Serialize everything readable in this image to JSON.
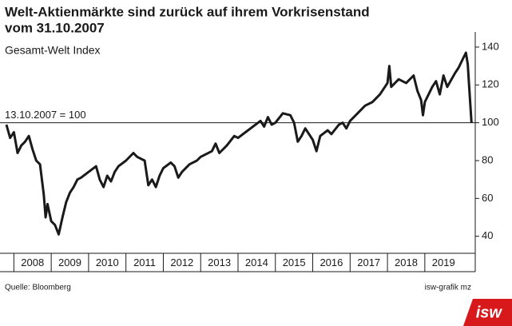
{
  "chart_data": {
    "type": "line",
    "title": [
      "Welt-Aktienmärkte sind zurück auf ihrem  Vorkrisenstand",
      "vom 31.10.2007"
    ],
    "subtitle": "Gesamt-Welt Index",
    "reference_line": {
      "value": 100,
      "label": "13.10.2007 = 100"
    },
    "source": "Quelle: Bloomberg",
    "credit": "isw-grafik mz",
    "logo": "isw",
    "color": "#1a1a1a",
    "x": [
      2007.8,
      2007.9,
      2008.0,
      2008.1,
      2008.2,
      2008.3,
      2008.4,
      2008.5,
      2008.6,
      2008.7,
      2008.8,
      2008.85,
      2008.9,
      2009.0,
      2009.1,
      2009.2,
      2009.3,
      2009.4,
      2009.5,
      2009.6,
      2009.7,
      2009.8,
      2010.0,
      2010.2,
      2010.3,
      2010.4,
      2010.5,
      2010.6,
      2010.7,
      2010.8,
      2011.0,
      2011.2,
      2011.3,
      2011.5,
      2011.6,
      2011.7,
      2011.8,
      2011.9,
      2012.0,
      2012.2,
      2012.3,
      2012.4,
      2012.5,
      2012.7,
      2012.9,
      2013.0,
      2013.3,
      2013.4,
      2013.5,
      2013.7,
      2013.9,
      2014.0,
      2014.2,
      2014.4,
      2014.6,
      2014.7,
      2014.8,
      2014.9,
      2015.0,
      2015.2,
      2015.4,
      2015.5,
      2015.6,
      2015.7,
      2015.8,
      2016.0,
      2016.1,
      2016.2,
      2016.4,
      2016.5,
      2016.7,
      2016.8,
      2016.9,
      2017.0,
      2017.2,
      2017.4,
      2017.6,
      2017.8,
      2018.0,
      2018.05,
      2018.1,
      2018.3,
      2018.5,
      2018.7,
      2018.8,
      2018.9,
      2018.95,
      2019.0,
      2019.2,
      2019.3,
      2019.4,
      2019.5,
      2019.6,
      2019.8,
      2019.9,
      2020.0,
      2020.1,
      2020.15,
      2020.2,
      2020.25
    ],
    "values": [
      99,
      92,
      95,
      84,
      88,
      90,
      93,
      86,
      80,
      78,
      62,
      50,
      57,
      48,
      46,
      41,
      50,
      58,
      63,
      66,
      70,
      71,
      74,
      77,
      70,
      66,
      72,
      69,
      74,
      77,
      80,
      84,
      82,
      80,
      67,
      70,
      66,
      72,
      76,
      79,
      77,
      71,
      74,
      78,
      80,
      82,
      85,
      89,
      84,
      88,
      93,
      92,
      95,
      98,
      101,
      98,
      103,
      99,
      100,
      105,
      104,
      100,
      90,
      93,
      97,
      91,
      85,
      93,
      96,
      94,
      99,
      100,
      97,
      101,
      105,
      109,
      111,
      115,
      121,
      130,
      119,
      123,
      121,
      125,
      117,
      112,
      104,
      111,
      119,
      122,
      115,
      125,
      119,
      126,
      129,
      133,
      137,
      131,
      115,
      100
    ],
    "xlim": [
      2007.8,
      2020.35
    ],
    "xticks": [
      {
        "value": 2008.5,
        "label": "2008"
      },
      {
        "value": 2009.5,
        "label": "2009"
      },
      {
        "value": 2010.5,
        "label": "2010"
      },
      {
        "value": 2011.5,
        "label": "2011"
      },
      {
        "value": 2012.5,
        "label": "2012"
      },
      {
        "value": 2013.5,
        "label": "2013"
      },
      {
        "value": 2014.5,
        "label": "2014"
      },
      {
        "value": 2015.5,
        "label": "2015"
      },
      {
        "value": 2016.5,
        "label": "2016"
      },
      {
        "value": 2017.5,
        "label": "2017"
      },
      {
        "value": 2018.5,
        "label": "2018"
      },
      {
        "value": 2019.5,
        "label": "2019"
      }
    ],
    "ylim": [
      31,
      148
    ],
    "yticks": [
      40,
      60,
      80,
      100,
      120,
      140
    ]
  }
}
